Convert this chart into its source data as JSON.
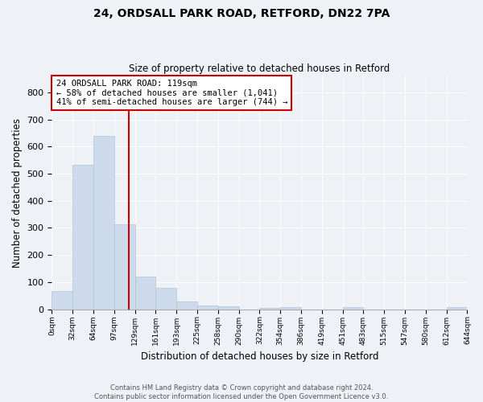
{
  "title_line1": "24, ORDSALL PARK ROAD, RETFORD, DN22 7PA",
  "title_line2": "Size of property relative to detached houses in Retford",
  "xlabel": "Distribution of detached houses by size in Retford",
  "ylabel": "Number of detached properties",
  "annotation_line1": "24 ORDSALL PARK ROAD: 119sqm",
  "annotation_line2": "← 58% of detached houses are smaller (1,041)",
  "annotation_line3": "41% of semi-detached houses are larger (744) →",
  "bar_color": "#cddaeb",
  "bar_edge_color": "#b0c4d8",
  "vline_color": "#cc0000",
  "vline_x": 119,
  "background_color": "#eef2f7",
  "axes_bg_color": "#eef2f7",
  "bin_edges": [
    0,
    32,
    64,
    97,
    129,
    161,
    193,
    225,
    258,
    290,
    322,
    354,
    386,
    419,
    451,
    483,
    515,
    547,
    580,
    612,
    644
  ],
  "bin_labels": [
    "0sqm",
    "32sqm",
    "64sqm",
    "97sqm",
    "129sqm",
    "161sqm",
    "193sqm",
    "225sqm",
    "258sqm",
    "290sqm",
    "322sqm",
    "354sqm",
    "386sqm",
    "419sqm",
    "451sqm",
    "483sqm",
    "515sqm",
    "547sqm",
    "580sqm",
    "612sqm",
    "644sqm"
  ],
  "bar_heights": [
    67,
    533,
    638,
    312,
    120,
    78,
    30,
    15,
    10,
    0,
    5,
    7,
    0,
    0,
    7,
    0,
    0,
    0,
    0,
    7
  ],
  "ylim": [
    0,
    860
  ],
  "yticks": [
    0,
    100,
    200,
    300,
    400,
    500,
    600,
    700,
    800
  ],
  "footer_line1": "Contains HM Land Registry data © Crown copyright and database right 2024.",
  "footer_line2": "Contains public sector information licensed under the Open Government Licence v3.0."
}
